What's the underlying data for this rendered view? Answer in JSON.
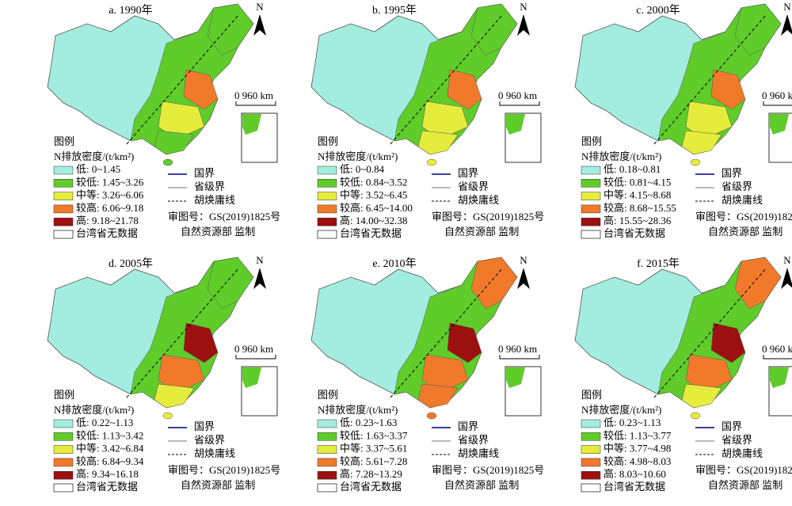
{
  "panels": [
    {
      "title": "a. 1990年",
      "legend_items": [
        "低: 0~1.45",
        "较低: 1.45~3.26",
        "中等: 3.26~6.06",
        "较高: 6.06~9.18",
        "高: 9.18~21.78"
      ]
    },
    {
      "title": "b. 1995年",
      "legend_items": [
        "低: 0~0.84",
        "较低: 0.84~3.52",
        "中等: 3.52~6.45",
        "较高: 6.45~14.00",
        "高: 14.00~32.38"
      ]
    },
    {
      "title": "c. 2000年",
      "legend_items": [
        "低: 0.18~0.81",
        "较低: 0.81~4.15",
        "中等: 4.15~8.68",
        "较高: 8.68~15.55",
        "高: 15.55~28.36"
      ]
    },
    {
      "title": "d. 2005年",
      "legend_items": [
        "低: 0.22~1.13",
        "较低: 1.13~3.42",
        "中等: 3.42~6.84",
        "较高: 6.84~9.34",
        "高: 9.34~16.18"
      ]
    },
    {
      "title": "e. 2010年",
      "legend_items": [
        "低: 0.23~1.63",
        "较低: 1.63~3.37",
        "中等: 3.37~5.61",
        "较高: 5.61~7.28",
        "高: 7.28~13.29"
      ]
    },
    {
      "title": "f. 2015年",
      "legend_items": [
        "低: 0.23~1.13",
        "较低: 1.13~3.77",
        "中等: 3.77~4.98",
        "较高: 4.98~8.03",
        "高: 8.03~10.60"
      ]
    }
  ],
  "legend_colors": [
    "#a3ece0",
    "#5fcc2a",
    "#e6ec3c",
    "#f07a2a",
    "#9c1010"
  ],
  "legend_title": "图例",
  "density_label": "N排放密度/(t/km²)",
  "no_data": "台湾省无数据",
  "national_border": "国界",
  "provincial_border": "省级界",
  "hu_line": "胡焕庸线",
  "approval": "审图号：GS(2019)1825号",
  "supervisor": "自然资源部 监制",
  "scale": "0 960 km",
  "north": "N"
}
